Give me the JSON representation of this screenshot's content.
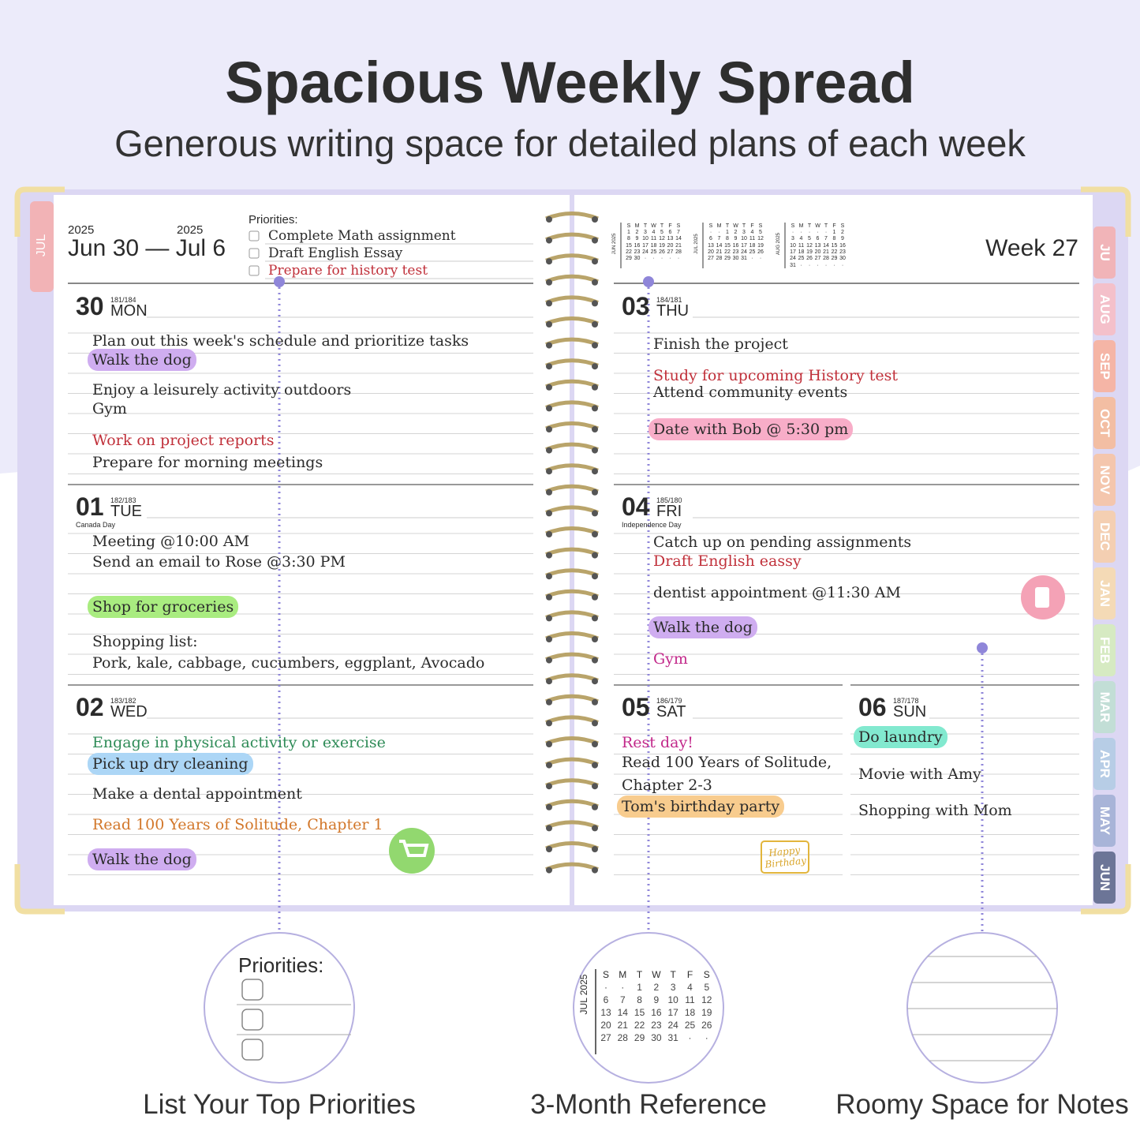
{
  "header": {
    "title": "Spacious Weekly Spread",
    "subtitle": "Generous writing space for detailed plans of each week"
  },
  "left_page": {
    "side_tab": "JUL",
    "years": [
      "2025",
      "2025"
    ],
    "date_range": "Jun 30 — Jul 6",
    "priorities": {
      "label": "Priorities:",
      "items": [
        {
          "text": "Complete Math assignment"
        },
        {
          "text": "Draft English Essay"
        },
        {
          "text": "Prepare for history test",
          "color": "#c0303a"
        }
      ]
    }
  },
  "right_page": {
    "week": "Week 27",
    "mini_calendars": {
      "weekdays": [
        "S",
        "M",
        "T",
        "W",
        "T",
        "F",
        "S"
      ],
      "months": [
        {
          "label": "JUN 2025",
          "weeks": [
            [
              "1",
              "2",
              "3",
              "4",
              "5",
              "6",
              "7"
            ],
            [
              "8",
              "9",
              "10",
              "11",
              "12",
              "13",
              "14"
            ],
            [
              "15",
              "16",
              "17",
              "18",
              "19",
              "20",
              "21"
            ],
            [
              "22",
              "23",
              "24",
              "25",
              "26",
              "27",
              "28"
            ],
            [
              "29",
              "30",
              "·",
              "·",
              "·",
              "·",
              "·"
            ]
          ]
        },
        {
          "label": "JUL 2025",
          "weeks": [
            [
              "·",
              "·",
              "1",
              "2",
              "3",
              "4",
              "5"
            ],
            [
              "6",
              "7",
              "8",
              "9",
              "10",
              "11",
              "12"
            ],
            [
              "13",
              "14",
              "15",
              "16",
              "17",
              "18",
              "19"
            ],
            [
              "20",
              "21",
              "22",
              "23",
              "24",
              "25",
              "26"
            ],
            [
              "27",
              "28",
              "29",
              "30",
              "31",
              "·",
              "·"
            ]
          ]
        },
        {
          "label": "AUG 2025",
          "weeks": [
            [
              "·",
              "·",
              "·",
              "·",
              "·",
              "1",
              "2"
            ],
            [
              "3",
              "4",
              "5",
              "6",
              "7",
              "8",
              "9"
            ],
            [
              "10",
              "11",
              "12",
              "13",
              "14",
              "15",
              "16"
            ],
            [
              "17",
              "18",
              "19",
              "20",
              "21",
              "22",
              "23"
            ],
            [
              "24",
              "25",
              "26",
              "27",
              "28",
              "29",
              "30"
            ],
            [
              "31",
              "·",
              "·",
              "·",
              "·",
              "·",
              "·"
            ]
          ]
        }
      ]
    },
    "month_tabs": [
      {
        "label": "JU",
        "color": "#f1b4b8"
      },
      {
        "label": "AUG",
        "color": "#f4c0ca"
      },
      {
        "label": "SEP",
        "color": "#f5b5a6"
      },
      {
        "label": "OCT",
        "color": "#f3bea3"
      },
      {
        "label": "NOV",
        "color": "#f4c6ad"
      },
      {
        "label": "DEC",
        "color": "#f4cfb2"
      },
      {
        "label": "JAN",
        "color": "#f4dab6"
      },
      {
        "label": "FEB",
        "color": "#d6eac2"
      },
      {
        "label": "MAR",
        "color": "#c2ded6"
      },
      {
        "label": "APR",
        "color": "#b7cde6"
      },
      {
        "label": "MAY",
        "color": "#a8b4d8"
      },
      {
        "label": "JUN",
        "color": "#6c7597"
      }
    ]
  },
  "days": [
    {
      "date": "30",
      "weekday": "MON",
      "day_count": "181/184",
      "entries": [
        {
          "text": "Plan out this week's schedule and prioritize tasks"
        },
        {
          "text": "Walk the dog",
          "highlight": "#cfadf0"
        },
        {
          "text": "Enjoy a leisurely activity outdoors"
        },
        {
          "text": "Gym"
        },
        {
          "text": "Work on project reports",
          "color": "#c0303a"
        },
        {
          "text": "Prepare for morning meetings"
        }
      ]
    },
    {
      "date": "01",
      "weekday": "TUE",
      "day_count": "182/183",
      "holiday": "Canada Day",
      "entries": [
        {
          "text": "Meeting @10:00 AM"
        },
        {
          "text": "Send an email to Rose @3:30 PM"
        },
        {
          "text": "Shop for groceries",
          "highlight": "#a9ec80"
        },
        {
          "text": "Shopping list:"
        },
        {
          "text": "Pork, kale, cabbage, cucumbers, eggplant, Avocado"
        }
      ]
    },
    {
      "date": "02",
      "weekday": "WED",
      "day_count": "183/182",
      "entries": [
        {
          "text": "Engage in physical activity or exercise",
          "color": "#2e8b57"
        },
        {
          "text": "Pick up dry cleaning",
          "highlight": "#acd6f6"
        },
        {
          "text": "Make a dental appointment"
        },
        {
          "text": "Read 100 Years of Solitude, Chapter 1",
          "color": "#d2772a"
        },
        {
          "text": "Walk the dog",
          "highlight": "#cfadf0"
        }
      ]
    },
    {
      "date": "03",
      "weekday": "THU",
      "day_count": "184/181",
      "entries": [
        {
          "text": "Finish the project"
        },
        {
          "text": "Study for upcoming History test",
          "color": "#c0303a"
        },
        {
          "text": "Attend community events"
        },
        {
          "text": "Date with Bob @ 5:30 pm",
          "highlight": "#f8adc8"
        }
      ]
    },
    {
      "date": "04",
      "weekday": "FRI",
      "day_count": "185/180",
      "holiday": "Independence Day",
      "entries": [
        {
          "text": "Catch up on pending assignments"
        },
        {
          "text": "Draft English eassy",
          "color": "#c0303a"
        },
        {
          "text": "dentist appointment @11:30 AM"
        },
        {
          "text": "Walk the dog",
          "highlight": "#cfadf0"
        },
        {
          "text": "Gym",
          "color": "#c2288a"
        }
      ]
    },
    {
      "date": "05",
      "weekday": "SAT",
      "day_count": "186/179",
      "entries": [
        {
          "text": "Rest day!",
          "color": "#c2288a"
        },
        {
          "text": "Read 100 Years of Solitude,"
        },
        {
          "text": "Chapter 2-3"
        },
        {
          "text": "Tom's birthday party",
          "highlight": "#f8cc8e"
        }
      ]
    },
    {
      "date": "06",
      "weekday": "SUN",
      "day_count": "187/178",
      "entries": [
        {
          "text": "Do laundry",
          "highlight": "#82e9cf"
        },
        {
          "text": "Movie with Amy"
        },
        {
          "text": "Shopping with Mom"
        }
      ]
    }
  ],
  "sticker": "Happy Birthday",
  "callouts": [
    {
      "caption": "List Your Top Priorities",
      "label": "Priorities:"
    },
    {
      "caption": "3-Month Reference"
    },
    {
      "caption": "Roomy Space for Notes"
    }
  ]
}
